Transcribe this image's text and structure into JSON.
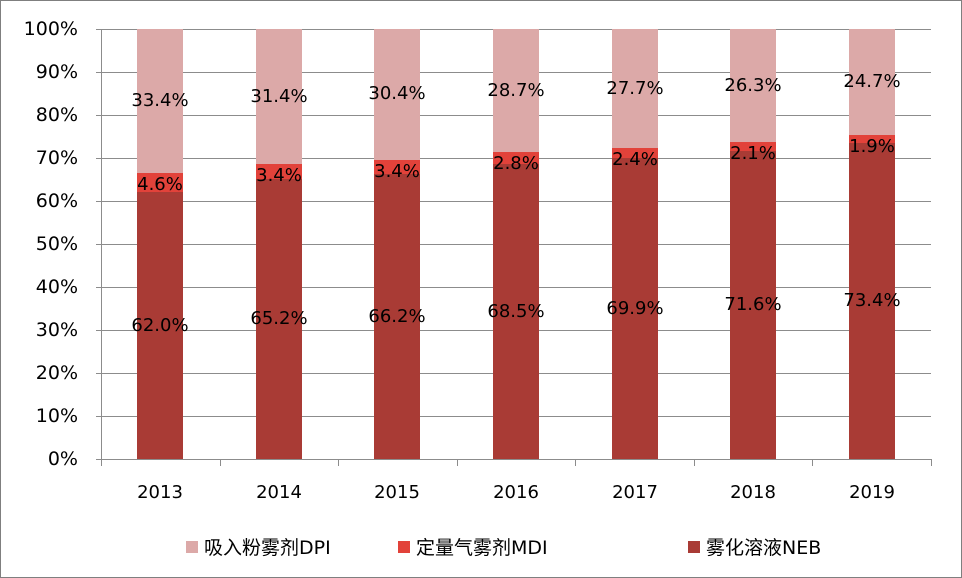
{
  "chart_data": {
    "type": "bar",
    "stacked": true,
    "percent_stacked": true,
    "title": "",
    "xlabel": "",
    "ylabel": "",
    "ylim": [
      0,
      100
    ],
    "y_ticks": [
      "0%",
      "10%",
      "20%",
      "30%",
      "40%",
      "50%",
      "60%",
      "70%",
      "80%",
      "90%",
      "100%"
    ],
    "categories": [
      "2013",
      "2014",
      "2015",
      "2016",
      "2017",
      "2018",
      "2019"
    ],
    "series": [
      {
        "name": "雾化溶液NEB",
        "color": "#a93b35",
        "values": [
          62.0,
          65.2,
          66.2,
          68.5,
          69.9,
          71.6,
          73.4
        ],
        "labels": [
          "62.0%",
          "65.2%",
          "66.2%",
          "68.5%",
          "69.9%",
          "71.6%",
          "73.4%"
        ]
      },
      {
        "name": "定量气雾剂MDI",
        "color": "#e2423a",
        "values": [
          4.6,
          3.4,
          3.4,
          2.8,
          2.4,
          2.1,
          1.9
        ],
        "labels": [
          "4.6%",
          "3.4%",
          "3.4%",
          "2.8%",
          "2.4%",
          "2.1%",
          "1.9%"
        ]
      },
      {
        "name": "吸入粉雾剂DPI",
        "color": "#dca9a8",
        "values": [
          33.4,
          31.4,
          30.4,
          28.7,
          27.7,
          26.3,
          24.7
        ],
        "labels": [
          "33.4%",
          "31.4%",
          "30.4%",
          "28.7%",
          "27.7%",
          "26.3%",
          "24.7%"
        ]
      }
    ],
    "grid": true,
    "legend_position": "bottom"
  },
  "legend": {
    "items": [
      {
        "label": "吸入粉雾剂DPI",
        "color": "#dca9a8"
      },
      {
        "label": "定量气雾剂MDI",
        "color": "#e2423a"
      },
      {
        "label": "雾化溶液NEB",
        "color": "#a93b35"
      }
    ]
  }
}
